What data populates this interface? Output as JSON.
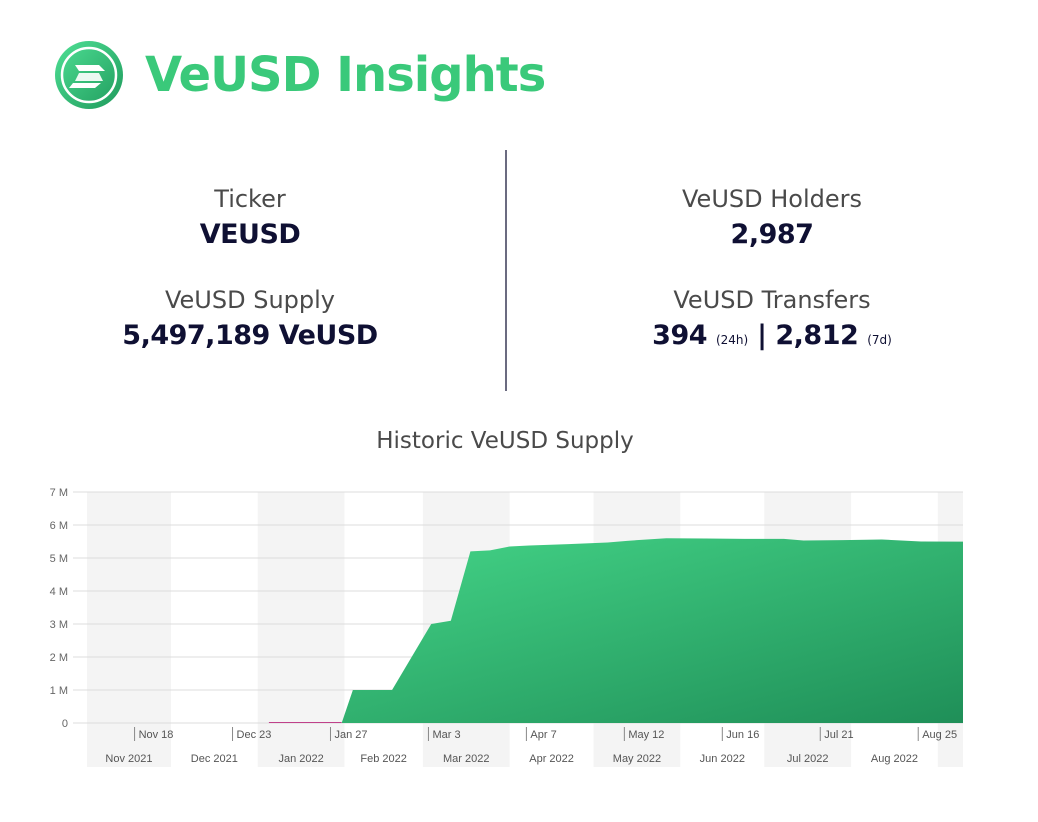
{
  "brand": {
    "name": "VeUSD Insights",
    "logo_icon": "veusd-logo-icon",
    "color": "#3ac97a"
  },
  "stats": {
    "ticker": {
      "label": "Ticker",
      "value": "VEUSD"
    },
    "supply": {
      "label": "VeUSD Supply",
      "value": "5,497,189 VeUSD"
    },
    "holders": {
      "label": "VeUSD Holders",
      "value": "2,987"
    },
    "transfers": {
      "label": "VeUSD Transfers",
      "value_24h": "394",
      "suffix_24h": "(24h)",
      "separator": "|",
      "value_7d": "2,812",
      "suffix_7d": "(7d)"
    }
  },
  "chart_data": {
    "type": "area",
    "title": "Historic VeUSD Supply",
    "ylim": [
      0,
      7000000
    ],
    "y_ticks": [
      "0",
      "1 M",
      "2 M",
      "3 M",
      "4 M",
      "5 M",
      "6 M",
      "7 M"
    ],
    "week_ticks": [
      "Nov 18",
      "Dec 23",
      "Jan 27",
      "Mar 3",
      "Apr 7",
      "May 12",
      "Jun 16",
      "Jul 21",
      "Aug 25"
    ],
    "month_ticks": [
      "Nov 2021",
      "Dec 2021",
      "Jan 2022",
      "Feb 2022",
      "Mar 2022",
      "Apr 2022",
      "May 2022",
      "Jun 2022",
      "Jul 2022",
      "Aug 2022"
    ],
    "grid": true,
    "fill_colors": [
      "#46d88a",
      "#1f8f58"
    ],
    "series": [
      {
        "x": [
          "2022-01-05",
          "2022-01-31",
          "2022-02-04",
          "2022-02-18",
          "2022-03-04",
          "2022-03-11",
          "2022-03-18",
          "2022-03-25",
          "2022-04-01",
          "2022-04-08",
          "2022-04-22",
          "2022-05-06",
          "2022-05-13",
          "2022-05-27",
          "2022-06-10",
          "2022-06-24",
          "2022-07-08",
          "2022-07-15",
          "2022-07-29",
          "2022-08-12",
          "2022-08-26",
          "2022-09-08"
        ],
        "values": [
          0,
          0,
          1000000,
          1000000,
          3000000,
          3100000,
          5200000,
          5230000,
          5350000,
          5380000,
          5420000,
          5470000,
          5520000,
          5600000,
          5590000,
          5580000,
          5580000,
          5530000,
          5540000,
          5560000,
          5500000,
          5497189
        ]
      }
    ]
  }
}
